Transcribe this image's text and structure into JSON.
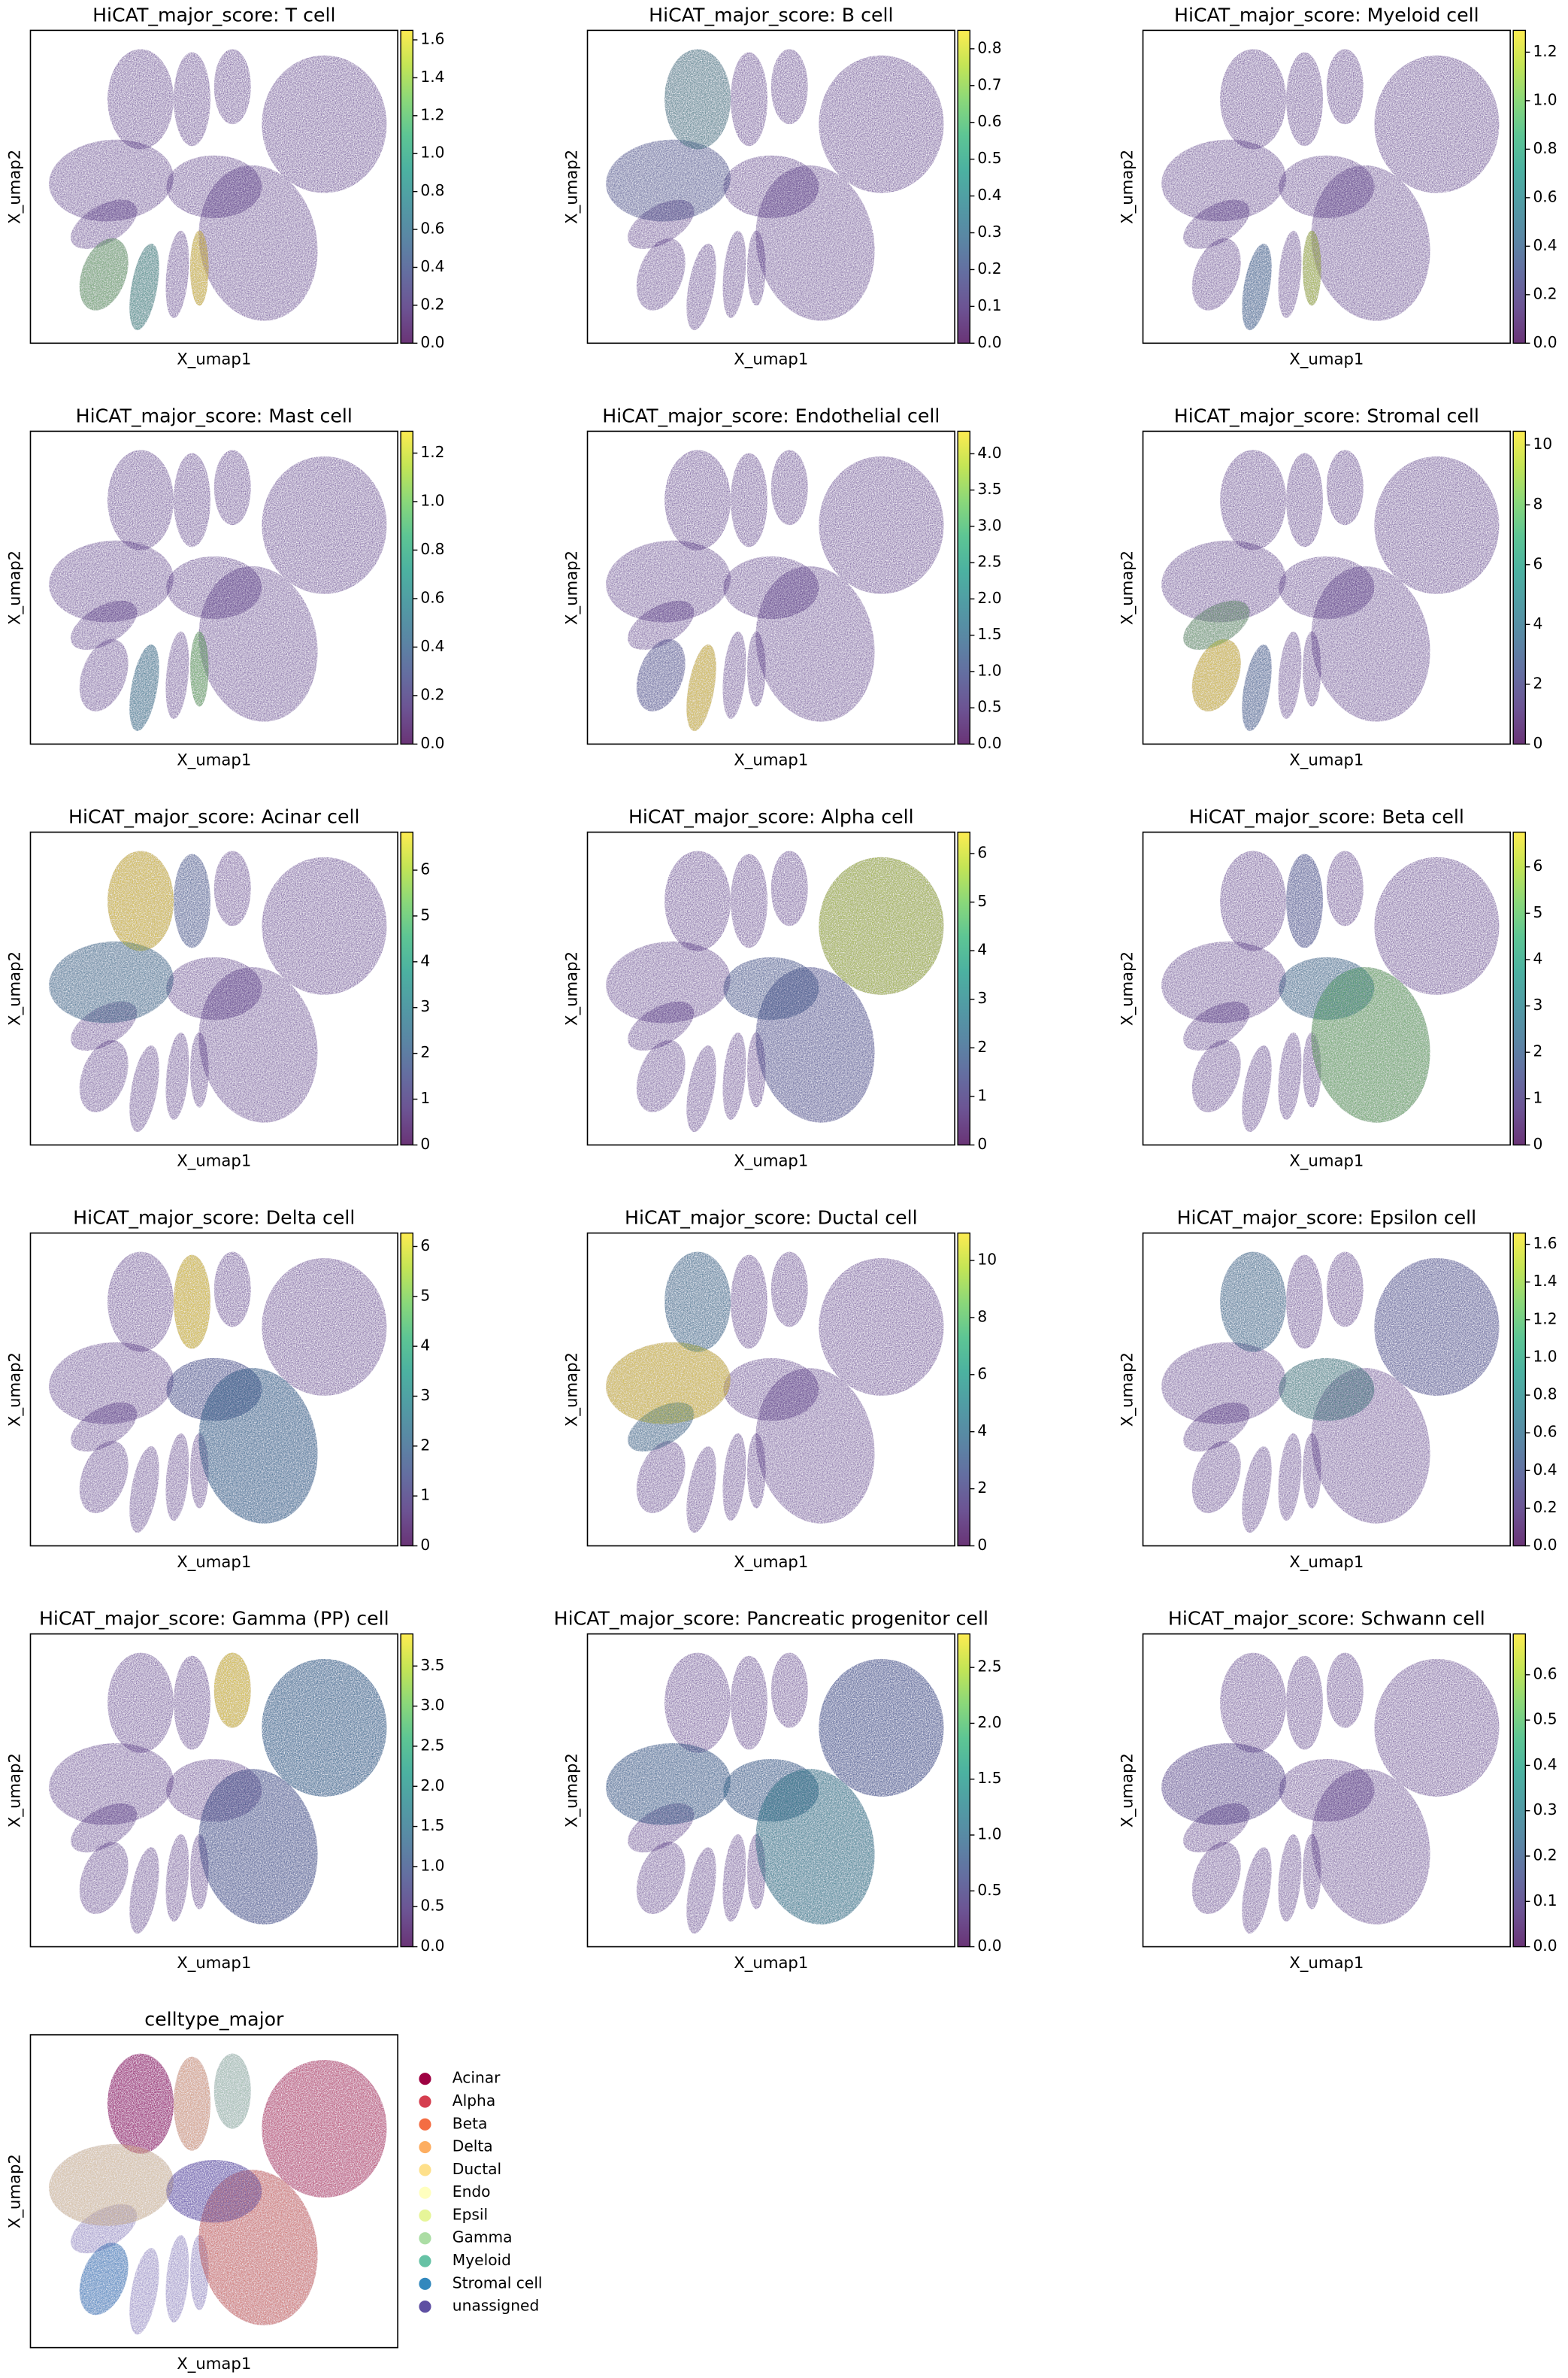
{
  "chart_data": [
    {
      "type": "scatter",
      "title": "HiCAT_major_score: T cell",
      "xlabel": "X_umap1",
      "ylabel": "X_umap2",
      "colormap": "viridis",
      "clim": [
        0,
        1.65
      ],
      "cticks": [
        {
          "value": 0,
          "label": "0.0"
        },
        0.2,
        0.4,
        0.6,
        0.8,
        {
          "value": 1,
          "label": "1.0"
        },
        1.2,
        1.4,
        1.6
      ]
    },
    {
      "type": "scatter",
      "title": "HiCAT_major_score: B cell",
      "xlabel": "X_umap1",
      "ylabel": "X_umap2",
      "colormap": "viridis",
      "clim": [
        0,
        0.85
      ],
      "cticks": [
        {
          "value": 0,
          "label": "0.0"
        },
        0.1,
        0.2,
        0.3,
        0.4,
        0.5,
        0.6,
        0.7,
        0.8
      ]
    },
    {
      "type": "scatter",
      "title": "HiCAT_major_score: Myeloid cell",
      "xlabel": "X_umap1",
      "ylabel": "X_umap2",
      "colormap": "viridis",
      "clim": [
        0,
        1.29
      ],
      "cticks": [
        {
          "value": 0,
          "label": "0.0"
        },
        0.2,
        0.4,
        0.6,
        0.8,
        {
          "value": 1,
          "label": "1.0"
        },
        1.2
      ]
    },
    {
      "type": "scatter",
      "title": "HiCAT_major_score: Mast cell",
      "xlabel": "X_umap1",
      "ylabel": "X_umap2",
      "colormap": "viridis",
      "clim": [
        0,
        1.29
      ],
      "cticks": [
        {
          "value": 0,
          "label": "0.0"
        },
        0.2,
        0.4,
        0.6,
        0.8,
        {
          "value": 1,
          "label": "1.0"
        },
        1.2
      ]
    },
    {
      "type": "scatter",
      "title": "HiCAT_major_score: Endothelial cell",
      "xlabel": "X_umap1",
      "ylabel": "X_umap2",
      "colormap": "viridis",
      "clim": [
        0,
        4.31
      ],
      "cticks": [
        {
          "value": 0,
          "label": "0.0"
        },
        0.5,
        {
          "value": 1,
          "label": "1.0"
        },
        1.5,
        {
          "value": 2,
          "label": "2.0"
        },
        2.5,
        {
          "value": 3,
          "label": "3.0"
        },
        3.5,
        {
          "value": 4,
          "label": "4.0"
        }
      ]
    },
    {
      "type": "scatter",
      "title": "HiCAT_major_score: Stromal cell",
      "xlabel": "X_umap1",
      "ylabel": "X_umap2",
      "colormap": "viridis",
      "clim": [
        0,
        10.46
      ],
      "cticks": [
        0,
        2,
        4,
        6,
        8,
        10
      ]
    },
    {
      "type": "scatter",
      "title": "HiCAT_major_score: Acinar cell",
      "xlabel": "X_umap1",
      "ylabel": "X_umap2",
      "colormap": "viridis",
      "clim": [
        0,
        6.83
      ],
      "cticks": [
        0,
        1,
        2,
        3,
        4,
        5,
        6
      ]
    },
    {
      "type": "scatter",
      "title": "HiCAT_major_score: Alpha cell",
      "xlabel": "X_umap1",
      "ylabel": "X_umap2",
      "colormap": "viridis",
      "clim": [
        0,
        6.44
      ],
      "cticks": [
        0,
        1,
        2,
        3,
        4,
        5,
        6
      ]
    },
    {
      "type": "scatter",
      "title": "HiCAT_major_score: Beta cell",
      "xlabel": "X_umap1",
      "ylabel": "X_umap2",
      "colormap": "viridis",
      "clim": [
        0,
        6.75
      ],
      "cticks": [
        0,
        1,
        2,
        3,
        4,
        5,
        6
      ]
    },
    {
      "type": "scatter",
      "title": "HiCAT_major_score: Delta cell",
      "xlabel": "X_umap1",
      "ylabel": "X_umap2",
      "colormap": "viridis",
      "clim": [
        0,
        6.27
      ],
      "cticks": [
        0,
        1,
        2,
        3,
        4,
        5,
        6
      ]
    },
    {
      "type": "scatter",
      "title": "HiCAT_major_score: Ductal cell",
      "xlabel": "X_umap1",
      "ylabel": "X_umap2",
      "colormap": "viridis",
      "clim": [
        0,
        10.96
      ],
      "cticks": [
        0,
        2,
        4,
        6,
        8,
        10
      ]
    },
    {
      "type": "scatter",
      "title": "HiCAT_major_score: Epsilon cell",
      "xlabel": "X_umap1",
      "ylabel": "X_umap2",
      "colormap": "viridis",
      "clim": [
        0,
        1.66
      ],
      "cticks": [
        {
          "value": 0,
          "label": "0.0"
        },
        0.2,
        0.4,
        0.6,
        0.8,
        {
          "value": 1,
          "label": "1.0"
        },
        1.2,
        1.4,
        1.6
      ]
    },
    {
      "type": "scatter",
      "title": "HiCAT_major_score: Gamma (PP) cell",
      "xlabel": "X_umap1",
      "ylabel": "X_umap2",
      "colormap": "viridis",
      "clim": [
        0,
        3.9
      ],
      "cticks": [
        {
          "value": 0,
          "label": "0.0"
        },
        0.5,
        {
          "value": 1,
          "label": "1.0"
        },
        1.5,
        {
          "value": 2,
          "label": "2.0"
        },
        2.5,
        {
          "value": 3,
          "label": "3.0"
        },
        3.5
      ]
    },
    {
      "type": "scatter",
      "title": "HiCAT_major_score: Pancreatic progenitor cell",
      "xlabel": "X_umap1",
      "ylabel": "X_umap2",
      "colormap": "viridis",
      "clim": [
        0,
        2.8
      ],
      "cticks": [
        {
          "value": 0,
          "label": "0.0"
        },
        0.5,
        {
          "value": 1,
          "label": "1.0"
        },
        1.5,
        {
          "value": 2,
          "label": "2.0"
        },
        2.5
      ]
    },
    {
      "type": "scatter",
      "title": "HiCAT_major_score: Schwann cell",
      "xlabel": "X_umap1",
      "ylabel": "X_umap2",
      "colormap": "viridis",
      "clim": [
        0,
        0.69
      ],
      "cticks": [
        {
          "value": 0,
          "label": "0.0"
        },
        0.1,
        0.2,
        0.3,
        0.4,
        0.5,
        0.6
      ]
    },
    {
      "type": "categorical",
      "title": "celltype_major",
      "xlabel": "X_umap1",
      "ylabel": "X_umap2",
      "categories": [
        "Acinar",
        "Alpha",
        "Beta",
        "Delta",
        "Ductal",
        "Endo",
        "Epsil",
        "Gamma",
        "Myeloid",
        "Stromal cell",
        "unassigned"
      ],
      "colors": [
        "#9e0142",
        "#d53e4f",
        "#f46d43",
        "#fdae61",
        "#fee08b",
        "#ffffbf",
        "#e6f598",
        "#abdda4",
        "#66c2a5",
        "#3288bd",
        "#5e4fa2"
      ]
    }
  ]
}
